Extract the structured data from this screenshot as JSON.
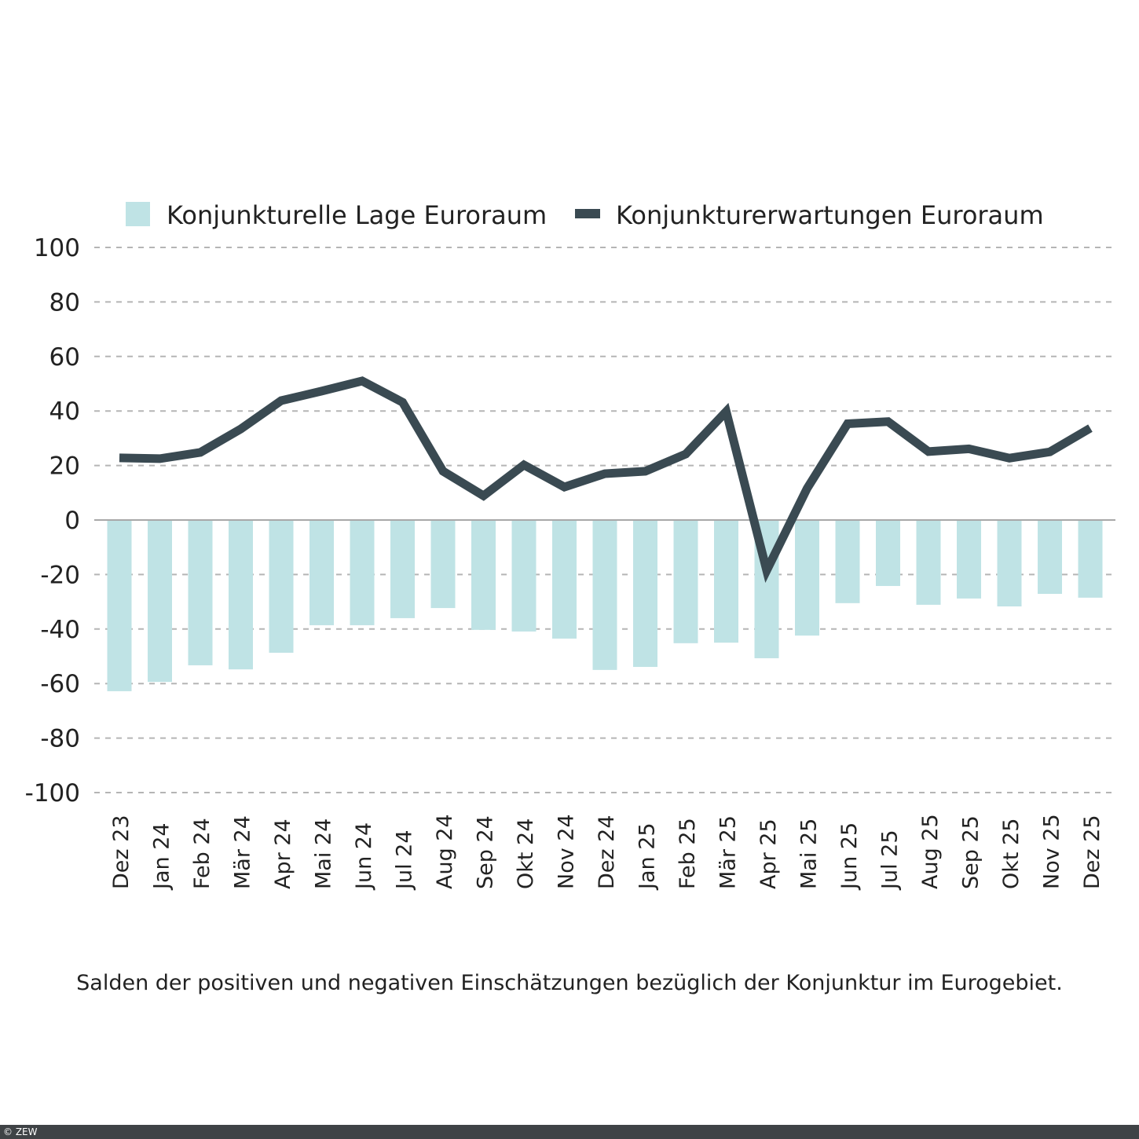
{
  "chart_data": {
    "type": "bar+line",
    "categories": [
      "Dez 23",
      "Jan 24",
      "Feb 24",
      "Mär 24",
      "Apr 24",
      "Mai 24",
      "Jun 24",
      "Jul 24",
      "Aug 24",
      "Sep 24",
      "Okt 24",
      "Nov 24",
      "Dez 24",
      "Jan 25",
      "Feb 25",
      "Mär 25",
      "Apr 25",
      "Mai 25",
      "Jun 25",
      "Jul 25",
      "Aug 25",
      "Sep 25",
      "Okt 25",
      "Nov 25",
      "Dez 25"
    ],
    "series": [
      {
        "name": "Konjunkturelle Lage Euroraum",
        "type": "bar",
        "color": "#bfe3e5",
        "values": [
          -62.8,
          -59.4,
          -53.3,
          -54.8,
          -48.7,
          -38.6,
          -38.6,
          -36.0,
          -32.3,
          -40.3,
          -40.9,
          -43.5,
          -55.0,
          -53.9,
          -45.2,
          -45.0,
          -50.7,
          -42.4,
          -30.5,
          -24.2,
          -31.1,
          -28.8,
          -31.7,
          -27.1,
          -28.5
        ]
      },
      {
        "name": "Konjunkturerwartungen Euroraum",
        "type": "line",
        "color": "#3a4a52",
        "values": [
          22.8,
          22.5,
          24.8,
          33.4,
          43.8,
          47.3,
          51.0,
          43.2,
          17.9,
          8.9,
          20.2,
          12.1,
          17.0,
          17.9,
          24.2,
          39.8,
          -18.5,
          11.6,
          35.3,
          36.1,
          25.1,
          26.1,
          22.7,
          25.0,
          33.7
        ]
      }
    ],
    "yticks": [
      100,
      80,
      60,
      40,
      20,
      0,
      -20,
      -40,
      -60,
      -80,
      -100
    ],
    "ylim": [
      -100,
      100
    ],
    "grid": true,
    "legend": "top"
  },
  "caption": "Salden der positiven und negativen Einschätzungen bezüglich der Konjunktur  im Eurogebiet.",
  "footer": "© ZEW"
}
